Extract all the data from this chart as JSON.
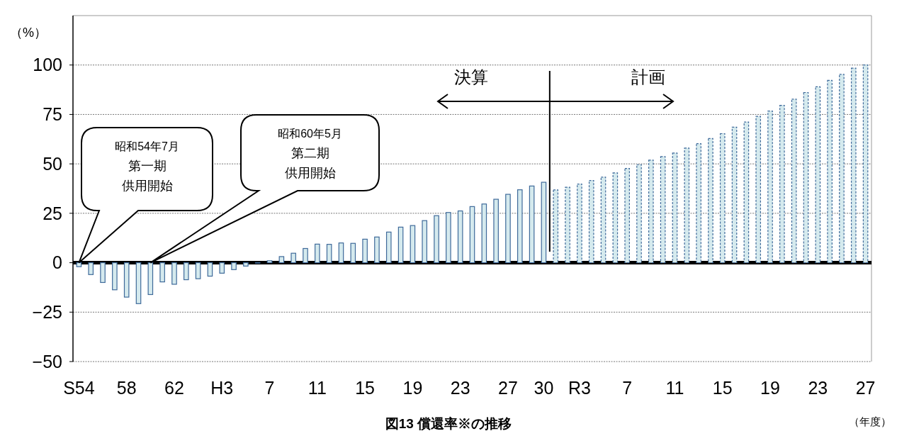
{
  "chart_data": {
    "type": "bar",
    "title": "図13 償還率※の推移",
    "xlabel": "（年度）",
    "ylabel": "（%）",
    "categories": [
      "S54",
      null,
      null,
      null,
      "58",
      null,
      null,
      null,
      "62",
      null,
      null,
      null,
      "H3",
      null,
      null,
      null,
      "7",
      null,
      null,
      null,
      "11",
      null,
      null,
      null,
      "15",
      null,
      null,
      null,
      "19",
      null,
      null,
      null,
      "23",
      null,
      null,
      null,
      "27",
      null,
      null,
      "30",
      null,
      null,
      "R3",
      null,
      null,
      null,
      "7",
      null,
      null,
      null,
      "11",
      null,
      null,
      null,
      "15",
      null,
      null,
      null,
      "19",
      null,
      null,
      null,
      "23",
      null,
      null,
      null,
      "27"
    ],
    "series": [
      {
        "color": "#d5eaee",
        "line_style": "solid",
        "values": [
          -2,
          -6,
          -10,
          -13.7,
          -17.4,
          -20.7,
          -16.1,
          -9.7,
          -10.9,
          -8.6,
          -8.1,
          -6.8,
          -5.3,
          -3.5,
          -1.7,
          0,
          1,
          3.1,
          4.8,
          7.2,
          9.4,
          9.3,
          10,
          9.8,
          11.9,
          13,
          15.5,
          18,
          18.8,
          21.3,
          23.8,
          25.4,
          26.2,
          28.4,
          29.7,
          32.1,
          34.6,
          36.9,
          38.8,
          40.7,
          null,
          null,
          null,
          null,
          null,
          null,
          null,
          null,
          null,
          null,
          null,
          null,
          null,
          null,
          null,
          null,
          null,
          null,
          null,
          null,
          null,
          null,
          null,
          null,
          null,
          null,
          null
        ]
      },
      {
        "color": "#d5eaee",
        "line_style": "dashed",
        "values": [
          null,
          null,
          null,
          null,
          null,
          null,
          null,
          null,
          null,
          null,
          null,
          null,
          null,
          null,
          null,
          null,
          null,
          null,
          null,
          null,
          null,
          null,
          null,
          null,
          null,
          null,
          null,
          null,
          null,
          null,
          null,
          null,
          null,
          null,
          null,
          null,
          null,
          null,
          null,
          null,
          36.8,
          38.2,
          39.8,
          41.6,
          43.3,
          45.4,
          47.7,
          49.6,
          51.9,
          53.7,
          55.5,
          58,
          60.2,
          62.8,
          65.3,
          68.6,
          71.2,
          74,
          76.7,
          79.6,
          82.7,
          86.1,
          89,
          92.2,
          95.3,
          98.4,
          100
        ]
      }
    ],
    "ylim": [
      -50,
      125
    ],
    "yticks": [
      -50,
      -25,
      0,
      25,
      50,
      75,
      100
    ],
    "grid": "y",
    "annotations": [
      "昭和54年7月",
      "第一期",
      "供用開始",
      "昭和60年5月",
      "第二期",
      "供用開始",
      "決算",
      "計画"
    ]
  }
}
